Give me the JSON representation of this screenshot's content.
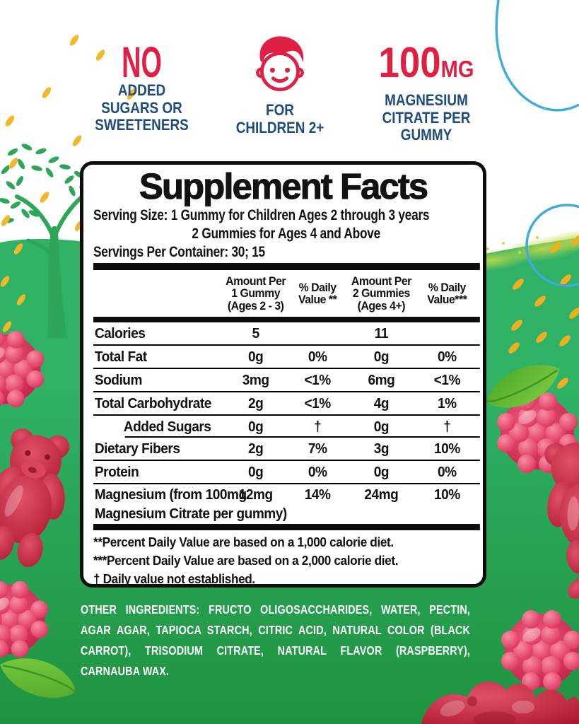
{
  "badges": {
    "no_added": {
      "headline": "NO",
      "lines": [
        "ADDED",
        "SUGARS OR",
        "SWEETENERS"
      ]
    },
    "children": {
      "icon": "boy-face-icon",
      "lines": [
        "FOR",
        "CHILDREN 2+"
      ]
    },
    "magnesium": {
      "amount": "100",
      "unit": "MG",
      "lines": [
        "MAGNESIUM",
        "CITRATE PER",
        "GUMMY"
      ]
    }
  },
  "panel": {
    "title": "Supplement Facts",
    "serving_size_line1": "Serving Size: 1 Gummy for Children Ages 2 through 3 years",
    "serving_size_line2": "2 Gummies for Ages 4 and Above",
    "servings_per_container": "Servings Per Container: 30; 15",
    "columns": [
      {
        "lines": [
          ""
        ]
      },
      {
        "lines": [
          "Amount Per",
          "1 Gummy",
          "(Ages 2 - 3)"
        ]
      },
      {
        "lines": [
          "% Daily",
          "Value **"
        ]
      },
      {
        "lines": [
          "Amount Per",
          "2 Gummies",
          "(Ages 4+)"
        ]
      },
      {
        "lines": [
          "% Daily",
          "Value***"
        ]
      }
    ],
    "rows": [
      {
        "label_lines": [
          "Calories"
        ],
        "values": [
          "5",
          "",
          "11",
          ""
        ],
        "divider_below": "full"
      },
      {
        "label_lines": [
          "Total Fat"
        ],
        "values": [
          "0g",
          "0%",
          "0g",
          "0%"
        ],
        "divider_below": "full"
      },
      {
        "label_lines": [
          "Sodium"
        ],
        "values": [
          "3mg",
          "<1%",
          "6mg",
          "<1%"
        ],
        "divider_below": "full"
      },
      {
        "label_lines": [
          "Total Carbohydrate"
        ],
        "values": [
          "2g",
          "<1%",
          "4g",
          "1%"
        ],
        "divider_below": "full"
      },
      {
        "label_lines": [
          "Added Sugars"
        ],
        "values": [
          "0g",
          "†",
          "0g",
          "†"
        ],
        "indent": true,
        "divider_below": "indent"
      },
      {
        "label_lines": [
          "Dietary Fibers"
        ],
        "values": [
          "2g",
          "7%",
          "3g",
          "10%"
        ],
        "divider_below": "full"
      },
      {
        "label_lines": [
          "Protein"
        ],
        "values": [
          "0g",
          "0%",
          "0g",
          "0%"
        ],
        "divider_below": "full"
      },
      {
        "label_lines": [
          "Magnesium (from 100mg",
          "Magnesium Citrate per gummy)"
        ],
        "values": [
          "12mg",
          "14%",
          "24mg",
          "10%"
        ],
        "tall": true,
        "divider_below": "none"
      }
    ],
    "footnotes": [
      "**Percent Daily Value are based on a 1,000 calorie diet.",
      "***Percent Daily Value  are based on a 2,000 calorie diet.",
      "† Daily value not established."
    ]
  },
  "other_ingredients": {
    "label": "OTHER INGREDIENTS:",
    "text": "FRUCTO OLIGOSACCHARIDES, WATER, PECTIN, AGAR AGAR, TAPIOCA STARCH, CITRIC ACID, NATURAL COLOR (BLACK CARROT), TRISODIUM CITRATE, NATURAL FLAVOR (RASPBERRY), CARNAUBA WAX."
  },
  "colors": {
    "accent_red": "#E01F45",
    "navy_blue": "#1E4C80",
    "panel_black": "#0D0D0D",
    "hill_green_top": "#2FB266",
    "hill_green_bottom": "#1F9340",
    "tree_green": "#2EA65A",
    "leaf_green": "#6CC235",
    "yellow_accent": "#F2B82A",
    "light_blue": "#41ACDA",
    "ingredients_text": "#FFFFFF"
  }
}
